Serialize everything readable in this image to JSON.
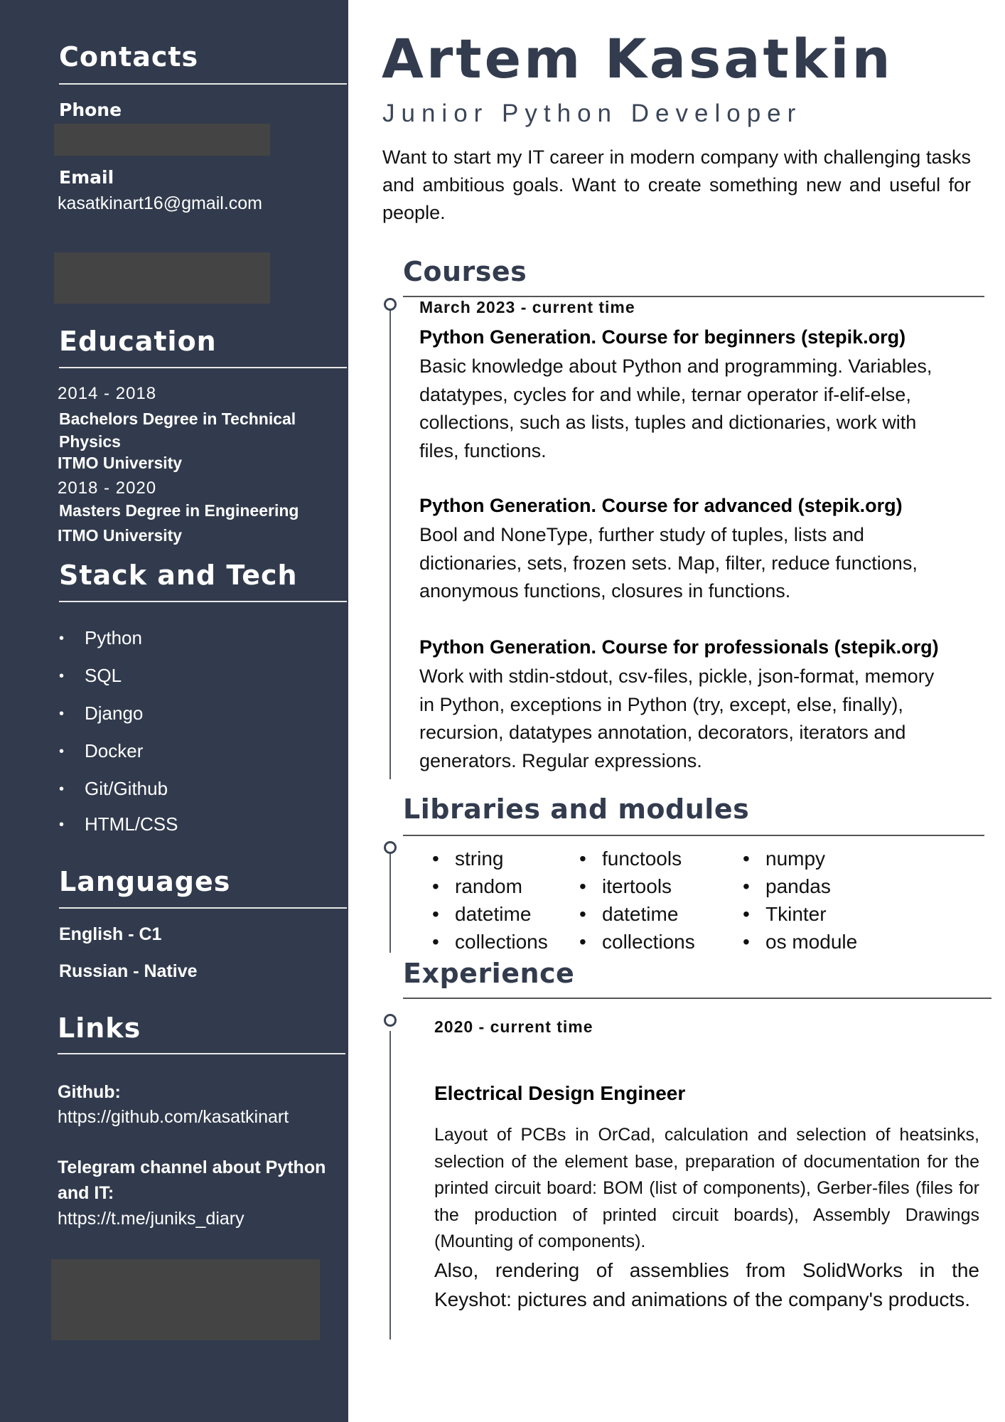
{
  "sidebar": {
    "contacts": {
      "heading": "Contacts",
      "phone_label": "Phone",
      "email_label": "Email",
      "email_value": "kasatkinart16@gmail.com"
    },
    "education": {
      "heading": "Education",
      "entries": [
        {
          "years": "2014 - 2018",
          "degree_line1": "Bachelors Degree in Technical",
          "degree_line2": "Physics",
          "school": "ITMO University"
        },
        {
          "years": "2018 - 2020",
          "degree_line1": "Masters Degree in Engineering",
          "school": "ITMO University"
        }
      ]
    },
    "stack": {
      "heading": "Stack and Tech",
      "items": [
        "Python",
        "SQL",
        "Django",
        "Docker",
        "Git/Github",
        "HTML/CSS"
      ]
    },
    "languages": {
      "heading": "Languages",
      "items": [
        "English - C1",
        "Russian - Native"
      ]
    },
    "links": {
      "heading": "Links",
      "github_label": "Github:",
      "github_url": "https://github.com/kasatkinart",
      "telegram_label_line1": "Telegram channel about Python",
      "telegram_label_line2": "and IT:",
      "telegram_url": "https://t.me/juniks_diary"
    }
  },
  "header": {
    "name": "Artem Kasatkin",
    "role": "Junior Python Developer",
    "summary": "Want to start my IT career in modern company with challenging tasks and ambitious goals. Want to create something new and useful for people."
  },
  "courses": {
    "heading": "Courses",
    "date": "March 2023 - current time",
    "items": [
      {
        "title": "Python Generation. Course for beginners (stepik.org)",
        "lines": [
          "Basic knowledge about Python and programming. Variables,",
          "datatypes, cycles for and while, ternar operator if-elif-else,",
          "collections, such as lists, tuples and dictionaries, work with",
          "files, functions."
        ]
      },
      {
        "title": "Python Generation. Course for advanced (stepik.org)",
        "lines": [
          "Bool and NoneType, further study of tuples, lists and",
          "dictionaries, sets, frozen sets. Map, filter, reduce functions,",
          "anonymous functions, closures in functions."
        ]
      },
      {
        "title": "Python Generation. Course for professionals (stepik.org)",
        "lines": [
          "Work with stdin-stdout, csv-files, pickle, json-format, memory",
          "in Python, exceptions in Python (try, except, else, finally),",
          "recursion, datatypes annotation, decorators, iterators and",
          "generators. Regular expressions."
        ]
      }
    ]
  },
  "libraries": {
    "heading": "Libraries and modules",
    "columns": [
      [
        "string",
        "random",
        "datetime",
        "collections"
      ],
      [
        "functools",
        "itertools",
        "datetime",
        "collections"
      ],
      [
        "numpy",
        "pandas",
        "Tkinter",
        "os module"
      ]
    ]
  },
  "experience": {
    "heading": "Experience",
    "date": "2020 - current time",
    "title": "Electrical Design Engineer",
    "desc1": "Layout of PCBs in OrCad, calculation and selection of heatsinks, selection of the element base, preparation of documentation for the printed circuit board: BOM (list of components), Gerber-files (files for the production of printed circuit boards), Assembly Drawings (Mounting of components).",
    "desc2": "Also, rendering of assemblies from SolidWorks in the Keyshot: pictures and animations of the company's products."
  }
}
